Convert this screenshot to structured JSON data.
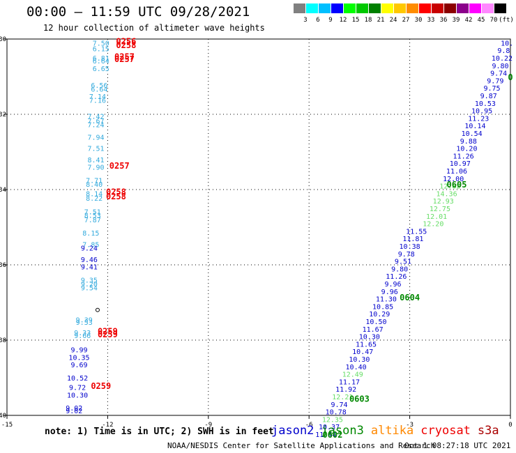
{
  "title": "00:00 – 11:59 UTC 09/28/2021",
  "subtitle": "12 hour collection of altimeter wave heights",
  "colorbar": {
    "colors": [
      "#808080",
      "#00ffff",
      "#00bfff",
      "#0000ff",
      "#00ff00",
      "#00c800",
      "#008000",
      "#ffff00",
      "#ffc800",
      "#ff8c00",
      "#ff0000",
      "#c80000",
      "#8b0000",
      "#8b008b",
      "#ff00ff",
      "#ff88ff",
      "#000000"
    ],
    "labels": [
      "3",
      "6",
      "9",
      "12",
      "15",
      "18",
      "21",
      "24",
      "27",
      "30",
      "33",
      "36",
      "39",
      "42",
      "45",
      "70",
      "(ft)"
    ]
  },
  "axes": {
    "x_ticks": [
      "-15",
      "-12",
      "-9",
      "-6",
      "-3",
      "0"
    ],
    "y_ticks": [
      "-30",
      "-32",
      "-34",
      "-36",
      "-38",
      "-40"
    ]
  },
  "note": "note: 1) Time is in UTC; 2) SWH is in feet",
  "satellites": [
    {
      "name": "jason2",
      "color": "#0000cc"
    },
    {
      "name": "jason3",
      "color": "#008800"
    },
    {
      "name": "altika",
      "color": "#ff8800"
    },
    {
      "name": "cryosat",
      "color": "#ee0000"
    },
    {
      "name": "s3a",
      "color": "#aa0000"
    }
  ],
  "footer": "NOAA/NESDIS Center for Satellite Applications and Research",
  "footer_date": "Oct  1 08:27:18 UTC 2021",
  "chart_data": {
    "type": "scatter",
    "xlim": [
      -15,
      0
    ],
    "ylim": [
      -40,
      -30
    ],
    "series": [
      {
        "name": "west track light",
        "color": "#33aadd",
        "points": [
          {
            "x": -12.2,
            "y": -30.1,
            "label": "7.50"
          },
          {
            "x": -12.2,
            "y": -30.25,
            "label": "6.15"
          },
          {
            "x": -12.2,
            "y": -30.5,
            "label": "6.81"
          },
          {
            "x": -12.2,
            "y": -30.57,
            "label": "6.64"
          },
          {
            "x": -12.2,
            "y": -30.78,
            "label": "6.65"
          },
          {
            "x": -12.25,
            "y": -31.22,
            "label": "6.56"
          },
          {
            "x": -12.25,
            "y": -31.32,
            "label": "6.64"
          },
          {
            "x": -12.3,
            "y": -31.52,
            "label": "7.14"
          },
          {
            "x": -12.3,
            "y": -31.62,
            "label": "7.16"
          },
          {
            "x": -12.35,
            "y": -32.05,
            "label": "7.42"
          },
          {
            "x": -12.35,
            "y": -32.17,
            "label": "7.67"
          },
          {
            "x": -12.35,
            "y": -32.27,
            "label": "7.24"
          },
          {
            "x": -12.35,
            "y": -32.6,
            "label": "7.94"
          },
          {
            "x": -12.35,
            "y": -32.9,
            "label": "7.51"
          },
          {
            "x": -12.35,
            "y": -33.2,
            "label": "8.41"
          },
          {
            "x": -12.35,
            "y": -33.4,
            "label": "7.90"
          },
          {
            "x": -12.4,
            "y": -33.75,
            "label": "7.71"
          },
          {
            "x": -12.4,
            "y": -33.85,
            "label": "8.40"
          },
          {
            "x": -12.4,
            "y": -34.1,
            "label": "8.14"
          },
          {
            "x": -12.4,
            "y": -34.22,
            "label": "8.22"
          },
          {
            "x": -12.45,
            "y": -34.58,
            "label": "7.51"
          },
          {
            "x": -12.45,
            "y": -34.68,
            "label": "8.53"
          },
          {
            "x": -12.45,
            "y": -34.8,
            "label": "7.87"
          },
          {
            "x": -12.5,
            "y": -35.15,
            "label": "8.15"
          },
          {
            "x": -12.5,
            "y": -35.45,
            "label": "7.85"
          },
          {
            "x": -12.55,
            "y": -36.4,
            "label": "9.35"
          },
          {
            "x": -12.55,
            "y": -36.5,
            "label": "9.20"
          },
          {
            "x": -12.55,
            "y": -36.6,
            "label": "9.54"
          },
          {
            "x": -12.7,
            "y": -37.45,
            "label": "9.39"
          },
          {
            "x": -12.7,
            "y": -37.52,
            "label": "9.53"
          },
          {
            "x": -12.75,
            "y": -37.8,
            "label": "9.33"
          },
          {
            "x": -12.75,
            "y": -37.87,
            "label": "9.66"
          }
        ]
      },
      {
        "name": "west track dark",
        "color": "#0000cc",
        "points": [
          {
            "x": -12.55,
            "y": -35.55,
            "label": "9.24"
          },
          {
            "x": -12.55,
            "y": -35.85,
            "label": "9.46"
          },
          {
            "x": -12.55,
            "y": -36.05,
            "label": "9.41"
          },
          {
            "x": -12.85,
            "y": -38.25,
            "label": "9.99"
          },
          {
            "x": -12.85,
            "y": -38.45,
            "label": "10.35"
          },
          {
            "x": -12.85,
            "y": -38.65,
            "label": "9.69"
          },
          {
            "x": -12.9,
            "y": -39.0,
            "label": "10.52"
          },
          {
            "x": -12.9,
            "y": -39.25,
            "label": "9.72"
          },
          {
            "x": -12.9,
            "y": -39.45,
            "label": "10.30"
          },
          {
            "x": -13.0,
            "y": -39.8,
            "label": "9.02"
          },
          {
            "x": -13.0,
            "y": -39.87,
            "label": "9.02"
          }
        ]
      },
      {
        "name": "east track dark",
        "color": "#0000cc",
        "points": [
          {
            "x": -0.1,
            "y": -30.1,
            "label": "10."
          },
          {
            "x": -0.2,
            "y": -30.3,
            "label": "9.8"
          },
          {
            "x": -0.25,
            "y": -30.5,
            "label": "10.22"
          },
          {
            "x": -0.3,
            "y": -30.7,
            "label": "9.80"
          },
          {
            "x": -0.35,
            "y": -30.9,
            "label": "9.74"
          },
          {
            "x": -0.45,
            "y": -31.1,
            "label": "9.79"
          },
          {
            "x": -0.55,
            "y": -31.3,
            "label": "9.75"
          },
          {
            "x": -0.65,
            "y": -31.5,
            "label": "9.87"
          },
          {
            "x": -0.75,
            "y": -31.7,
            "label": "10.53"
          },
          {
            "x": -0.85,
            "y": -31.9,
            "label": "10.95"
          },
          {
            "x": -0.95,
            "y": -32.1,
            "label": "11.23"
          },
          {
            "x": -1.05,
            "y": -32.3,
            "label": "10.14"
          },
          {
            "x": -1.15,
            "y": -32.5,
            "label": "10.54"
          },
          {
            "x": -1.25,
            "y": -32.7,
            "label": "9.88"
          },
          {
            "x": -1.3,
            "y": -32.9,
            "label": "10.20"
          },
          {
            "x": -1.4,
            "y": -33.1,
            "label": "11.26"
          },
          {
            "x": -1.5,
            "y": -33.3,
            "label": "10.97"
          },
          {
            "x": -1.6,
            "y": -33.5,
            "label": "11.06"
          },
          {
            "x": -1.7,
            "y": -33.7,
            "label": "12.00"
          },
          {
            "x": -2.8,
            "y": -35.1,
            "label": "11.55"
          },
          {
            "x": -2.9,
            "y": -35.3,
            "label": "11.81"
          },
          {
            "x": -3.0,
            "y": -35.5,
            "label": "10.38"
          },
          {
            "x": -3.1,
            "y": -35.7,
            "label": "9.78"
          },
          {
            "x": -3.2,
            "y": -35.9,
            "label": "9.51"
          },
          {
            "x": -3.3,
            "y": -36.1,
            "label": "9.80"
          },
          {
            "x": -3.4,
            "y": -36.3,
            "label": "11.26"
          },
          {
            "x": -3.5,
            "y": -36.5,
            "label": "9.96"
          },
          {
            "x": -3.6,
            "y": -36.7,
            "label": "9.96"
          },
          {
            "x": -3.7,
            "y": -36.9,
            "label": "11.30"
          },
          {
            "x": -3.8,
            "y": -37.1,
            "label": "10.85"
          },
          {
            "x": -3.9,
            "y": -37.3,
            "label": "10.29"
          },
          {
            "x": -4.0,
            "y": -37.5,
            "label": "10.50"
          },
          {
            "x": -4.1,
            "y": -37.7,
            "label": "11.67"
          },
          {
            "x": -4.2,
            "y": -37.9,
            "label": "10.30"
          },
          {
            "x": -4.3,
            "y": -38.1,
            "label": "11.65"
          },
          {
            "x": -4.4,
            "y": -38.3,
            "label": "10.47"
          },
          {
            "x": -4.5,
            "y": -38.5,
            "label": "10.30"
          },
          {
            "x": -4.6,
            "y": -38.7,
            "label": "10.40"
          },
          {
            "x": -4.8,
            "y": -39.1,
            "label": "11.17"
          },
          {
            "x": -4.9,
            "y": -39.3,
            "label": "11.92"
          },
          {
            "x": -5.1,
            "y": -39.7,
            "label": "9.74"
          },
          {
            "x": -5.2,
            "y": -39.9,
            "label": "10.78"
          },
          {
            "x": -5.4,
            "y": -40.3,
            "label": "10.37"
          },
          {
            "x": -5.5,
            "y": -40.5,
            "label": "11.44"
          }
        ]
      },
      {
        "name": "east track light",
        "color": "#66dd66",
        "points": [
          {
            "x": -1.8,
            "y": -33.9,
            "label": "12.82"
          },
          {
            "x": -1.9,
            "y": -34.1,
            "label": "14.36"
          },
          {
            "x": -2.0,
            "y": -34.3,
            "label": "12.93"
          },
          {
            "x": -2.1,
            "y": -34.5,
            "label": "12.75"
          },
          {
            "x": -2.2,
            "y": -34.7,
            "label": "12.01"
          },
          {
            "x": -2.3,
            "y": -34.9,
            "label": "12.20"
          },
          {
            "x": -4.7,
            "y": -38.9,
            "label": "12.49"
          },
          {
            "x": -5.0,
            "y": -39.5,
            "label": "12.21"
          },
          {
            "x": -5.3,
            "y": -40.1,
            "label": "12.35"
          }
        ]
      }
    ],
    "time_labels": [
      {
        "x": -11.45,
        "y": -30.05,
        "text": "0256",
        "color": "#ee0000"
      },
      {
        "x": -11.45,
        "y": -30.15,
        "text": "0258",
        "color": "#ee0000"
      },
      {
        "x": -11.5,
        "y": -30.45,
        "text": "0257",
        "color": "#ee0000"
      },
      {
        "x": -11.5,
        "y": -30.52,
        "text": "0257",
        "color": "#ee0000"
      },
      {
        "x": -11.65,
        "y": -33.35,
        "text": "0257",
        "color": "#ee0000"
      },
      {
        "x": -11.75,
        "y": -34.05,
        "text": "0258",
        "color": "#ee0000"
      },
      {
        "x": -11.75,
        "y": -34.17,
        "text": "0258",
        "color": "#ee0000"
      },
      {
        "x": -12.0,
        "y": -37.75,
        "text": "0259",
        "color": "#ee0000"
      },
      {
        "x": -12.0,
        "y": -37.83,
        "text": "0259",
        "color": "#ee0000"
      },
      {
        "x": -12.2,
        "y": -39.2,
        "text": "0259",
        "color": "#ee0000"
      },
      {
        "x": -1.6,
        "y": -33.85,
        "text": "0605",
        "color": "#008800"
      },
      {
        "x": -3.0,
        "y": -36.85,
        "text": "0604",
        "color": "#008800"
      },
      {
        "x": -4.5,
        "y": -39.55,
        "text": "0603",
        "color": "#008800"
      },
      {
        "x": -5.3,
        "y": -40.5,
        "text": "0602",
        "color": "#008800"
      },
      {
        "x": 0.0,
        "y": -31.0,
        "text": "0",
        "color": "#008800"
      }
    ],
    "markers": [
      {
        "x": -12.3,
        "y": -37.2,
        "symbol": "ring"
      }
    ]
  }
}
